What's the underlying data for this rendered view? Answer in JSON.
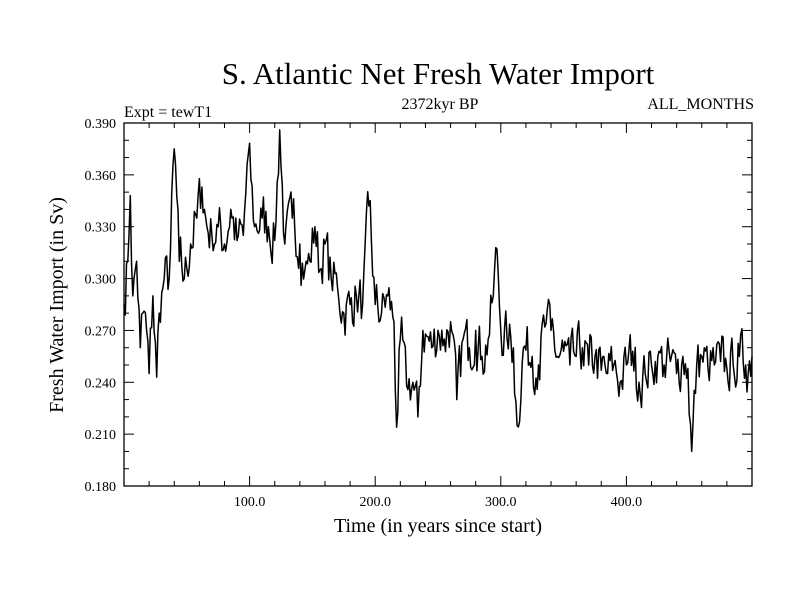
{
  "chart_data": {
    "type": "line",
    "title": "S. Atlantic Net Fresh Water Import",
    "subtitle_left": "Expt = tewT1",
    "subtitle_center": "2372kyr BP",
    "subtitle_right": "ALL_MONTHS",
    "xlabel": "Time (in years since start)",
    "ylabel": "Fresh Water Import (in Sv)",
    "xlim": [
      0,
      500
    ],
    "ylim": [
      0.18,
      0.39
    ],
    "xticks": [
      100,
      200,
      300,
      400
    ],
    "xtick_labels": [
      "100.0",
      "200.0",
      "300.0",
      "400.0"
    ],
    "yticks": [
      0.18,
      0.21,
      0.24,
      0.27,
      0.3,
      0.33,
      0.36,
      0.39
    ],
    "ytick_labels": [
      "0.180",
      "0.210",
      "0.240",
      "0.270",
      "0.300",
      "0.330",
      "0.360",
      "0.390"
    ],
    "grid": false,
    "series": [
      {
        "name": "fresh water import",
        "color": "#000000",
        "anchors": [
          [
            0,
            0.285
          ],
          [
            3,
            0.31
          ],
          [
            5,
            0.348
          ],
          [
            7,
            0.29
          ],
          [
            10,
            0.31
          ],
          [
            13,
            0.26
          ],
          [
            15,
            0.28
          ],
          [
            18,
            0.27
          ],
          [
            20,
            0.245
          ],
          [
            23,
            0.29
          ],
          [
            26,
            0.243
          ],
          [
            28,
            0.28
          ],
          [
            32,
            0.3
          ],
          [
            36,
            0.3
          ],
          [
            40,
            0.375
          ],
          [
            44,
            0.31
          ],
          [
            48,
            0.3
          ],
          [
            53,
            0.32
          ],
          [
            58,
            0.335
          ],
          [
            62,
            0.353
          ],
          [
            66,
            0.33
          ],
          [
            70,
            0.325
          ],
          [
            75,
            0.33
          ],
          [
            80,
            0.32
          ],
          [
            85,
            0.34
          ],
          [
            90,
            0.322
          ],
          [
            95,
            0.325
          ],
          [
            99,
            0.372
          ],
          [
            104,
            0.33
          ],
          [
            110,
            0.335
          ],
          [
            115,
            0.33
          ],
          [
            120,
            0.322
          ],
          [
            124,
            0.386
          ],
          [
            128,
            0.32
          ],
          [
            134,
            0.335
          ],
          [
            140,
            0.32
          ],
          [
            144,
            0.305
          ],
          [
            148,
            0.31
          ],
          [
            152,
            0.33
          ],
          [
            156,
            0.305
          ],
          [
            160,
            0.32
          ],
          [
            165,
            0.3
          ],
          [
            170,
            0.295
          ],
          [
            175,
            0.28
          ],
          [
            180,
            0.285
          ],
          [
            185,
            0.29
          ],
          [
            190,
            0.285
          ],
          [
            195,
            0.342
          ],
          [
            200,
            0.285
          ],
          [
            205,
            0.28
          ],
          [
            210,
            0.29
          ],
          [
            215,
            0.275
          ],
          [
            217,
            0.214
          ],
          [
            220,
            0.265
          ],
          [
            225,
            0.238
          ],
          [
            230,
            0.24
          ],
          [
            234,
            0.22
          ],
          [
            238,
            0.27
          ],
          [
            245,
            0.26
          ],
          [
            250,
            0.27
          ],
          [
            255,
            0.265
          ],
          [
            260,
            0.275
          ],
          [
            265,
            0.23
          ],
          [
            270,
            0.265
          ],
          [
            275,
            0.26
          ],
          [
            280,
            0.27
          ],
          [
            285,
            0.255
          ],
          [
            290,
            0.265
          ],
          [
            294,
            0.29
          ],
          [
            297,
            0.317
          ],
          [
            300,
            0.27
          ],
          [
            305,
            0.265
          ],
          [
            310,
            0.26
          ],
          [
            313,
            0.215
          ],
          [
            318,
            0.26
          ],
          [
            325,
            0.255
          ],
          [
            330,
            0.25
          ],
          [
            335,
            0.272
          ],
          [
            340,
            0.27
          ],
          [
            345,
            0.255
          ],
          [
            350,
            0.258
          ],
          [
            355,
            0.25
          ],
          [
            360,
            0.255
          ],
          [
            365,
            0.26
          ],
          [
            370,
            0.25
          ],
          [
            375,
            0.255
          ],
          [
            380,
            0.247
          ],
          [
            385,
            0.245
          ],
          [
            390,
            0.25
          ],
          [
            395,
            0.24
          ],
          [
            400,
            0.25
          ],
          [
            405,
            0.258
          ],
          [
            410,
            0.24
          ],
          [
            415,
            0.245
          ],
          [
            420,
            0.25
          ],
          [
            425,
            0.255
          ],
          [
            430,
            0.25
          ],
          [
            435,
            0.252
          ],
          [
            440,
            0.245
          ],
          [
            445,
            0.255
          ],
          [
            449,
            0.248
          ],
          [
            452,
            0.2
          ],
          [
            456,
            0.25
          ],
          [
            460,
            0.255
          ],
          [
            465,
            0.248
          ],
          [
            470,
            0.25
          ],
          [
            475,
            0.252
          ],
          [
            480,
            0.248
          ],
          [
            485,
            0.25
          ],
          [
            490,
            0.255
          ],
          [
            495,
            0.25
          ],
          [
            500,
            0.255
          ]
        ],
        "noise_amplitude": 0.018
      }
    ]
  }
}
